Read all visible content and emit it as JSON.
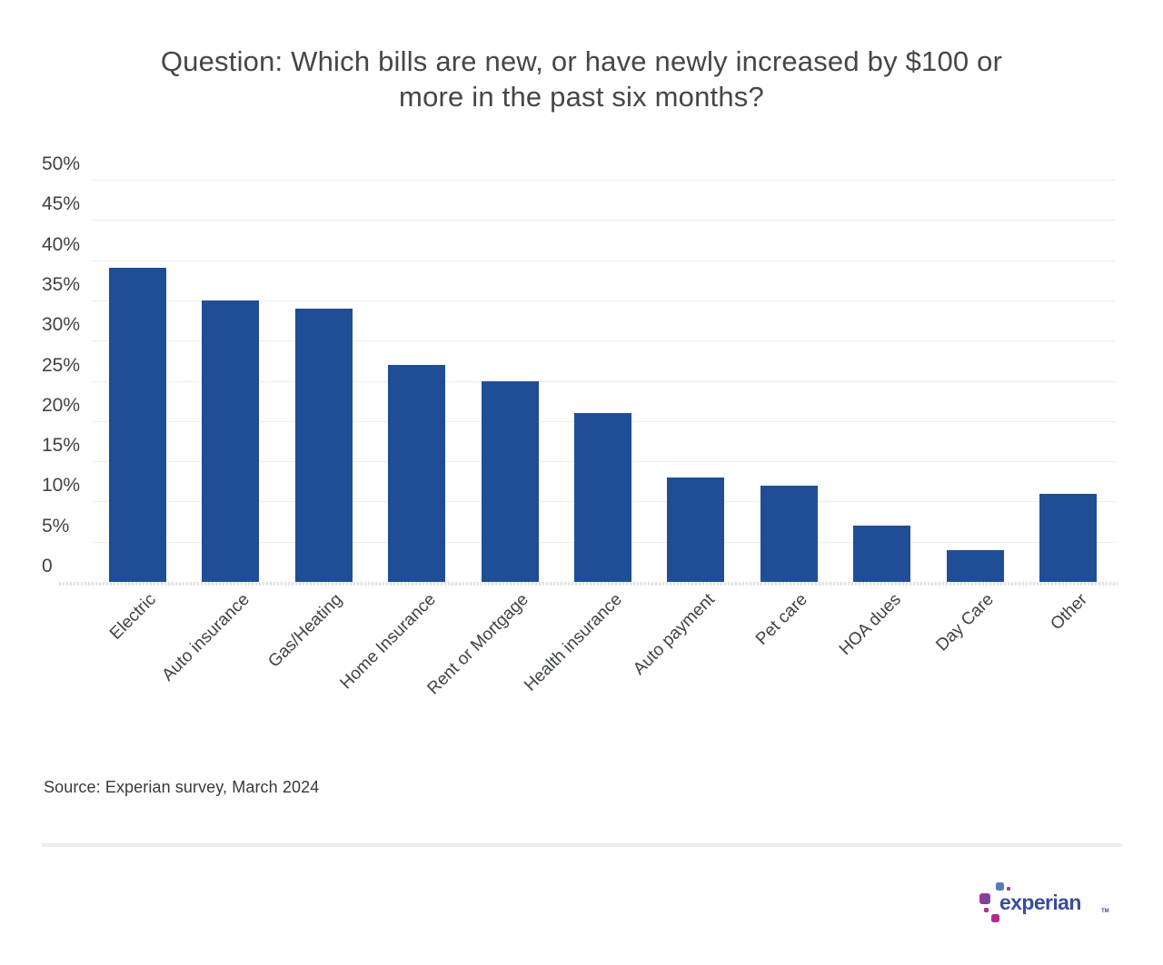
{
  "title": {
    "full": "Question: Which bills are new, or have newly increased by $100 or more in the past six months?",
    "lines": [
      "Question: Which bills are new, or have newly increased by $100 or",
      "more in the past six months?"
    ]
  },
  "source_note": "Source: Experian survey, March 2024",
  "logo": {
    "wordmark": "experian",
    "tm": "TM"
  },
  "colors": {
    "bar": "#1f4e96",
    "title_text": "#43474b",
    "axis_text": "#3f4348",
    "gridline": "#ededed",
    "axis_line": "#e3e3e3",
    "divider": "#ececec",
    "logo_wordmark": "#3a4d9b",
    "logo_magenta": "#b62f92",
    "logo_blue": "#5b79b9",
    "logo_purple_gradient": [
      "#b12e90",
      "#5358a8"
    ]
  },
  "chart_data": {
    "type": "bar",
    "title": "Question: Which bills are new, or have newly increased by $100 or more in the past six months?",
    "categories": [
      "Electric",
      "Auto insurance",
      "Gas/Heating",
      "Home Insurance",
      "Rent or Mortgage",
      "Health insurance",
      "Auto payment",
      "Pet care",
      "HOA dues",
      "Day Care",
      "Other"
    ],
    "values": [
      39,
      35,
      34,
      27,
      25,
      21,
      13,
      12,
      7,
      4,
      11
    ],
    "unit": "%",
    "xlabel": "",
    "ylabel": "",
    "ylim": [
      0,
      50
    ],
    "y_ticks": [
      "50%",
      "45%",
      "40%",
      "35%",
      "30%",
      "25%",
      "20%",
      "15%",
      "10%",
      "5%",
      "0"
    ],
    "y_tick_values": [
      50,
      45,
      40,
      35,
      30,
      25,
      20,
      15,
      10,
      5,
      0
    ],
    "grid": true,
    "legend": false,
    "bar_color": "#1f4e96"
  }
}
